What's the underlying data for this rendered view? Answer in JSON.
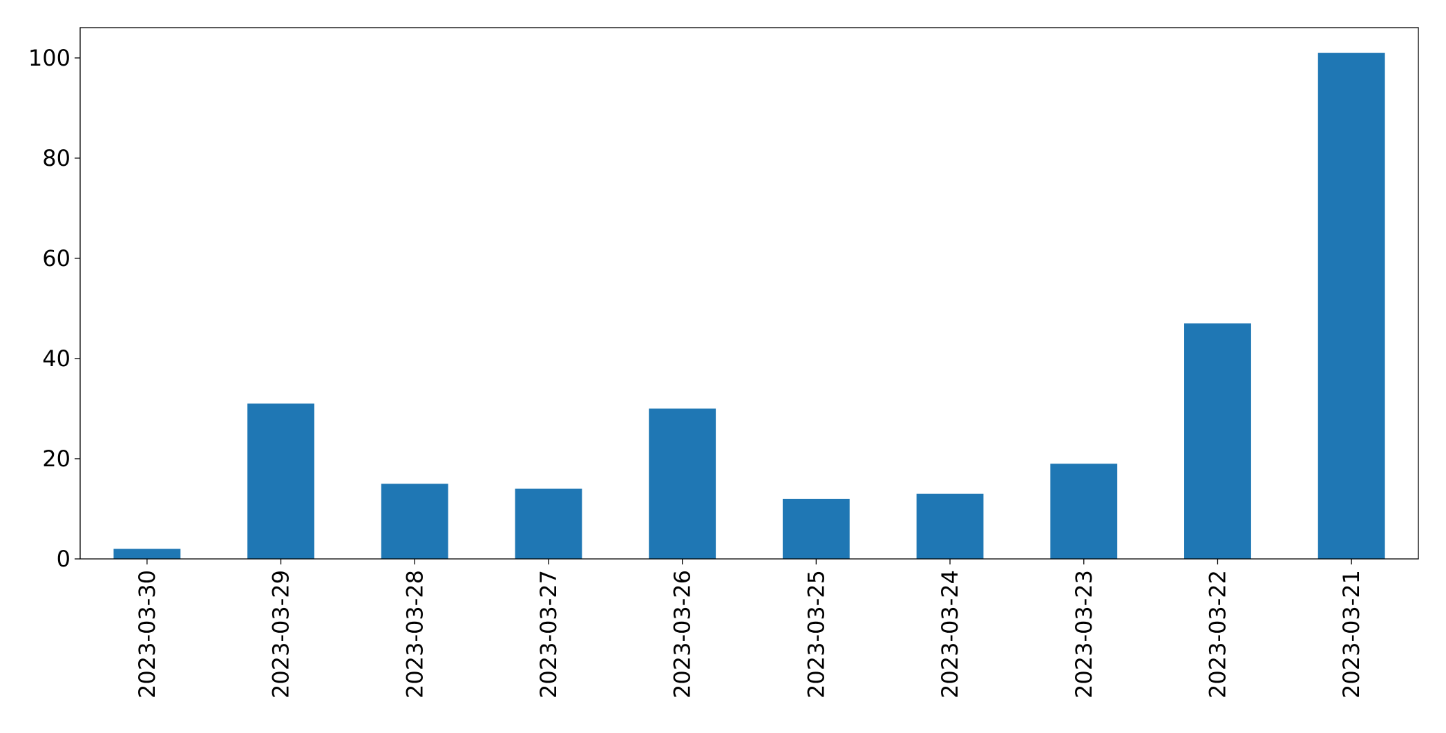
{
  "chart_data": {
    "type": "bar",
    "categories": [
      "2023-03-30",
      "2023-03-29",
      "2023-03-28",
      "2023-03-27",
      "2023-03-26",
      "2023-03-25",
      "2023-03-24",
      "2023-03-23",
      "2023-03-22",
      "2023-03-21"
    ],
    "values": [
      2,
      31,
      15,
      14,
      30,
      12,
      13,
      19,
      47,
      101
    ],
    "color": "#1f77b4",
    "ylim": [
      0,
      106.05
    ],
    "yticks": [
      0,
      20,
      40,
      60,
      80,
      100
    ],
    "grid": false
  }
}
